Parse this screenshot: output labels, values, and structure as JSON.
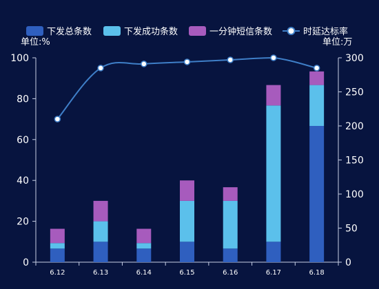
{
  "colors": {
    "background": "#07143f",
    "axis": "#c8d0e6",
    "text": "#ffffff",
    "series": [
      "#2f5fbf",
      "#5bc0eb",
      "#a75bbd"
    ],
    "line": "#3f7fc8",
    "marker_fill": "#ffffff",
    "marker_stroke": "#3f7fc8"
  },
  "chart_data": {
    "type": "bar",
    "stacked": true,
    "categories": [
      "6.12",
      "6.13",
      "6.14",
      "6.15",
      "6.16",
      "6.17",
      "6.18"
    ],
    "series": [
      {
        "name": "下发总条数",
        "axis": "right",
        "values": [
          20,
          30,
          20,
          30,
          20,
          30,
          200
        ]
      },
      {
        "name": "下发成功条数",
        "axis": "right",
        "values": [
          8,
          30,
          8,
          60,
          70,
          200,
          60
        ]
      },
      {
        "name": "一分钟短信条数",
        "axis": "right",
        "values": [
          21,
          30,
          21,
          30,
          20,
          30,
          20
        ]
      }
    ],
    "line_series": {
      "name": "时延达标率",
      "axis": "left",
      "type": "line",
      "smooth": true,
      "values": [
        70,
        95,
        97,
        98,
        99,
        100,
        95
      ]
    },
    "y_left": {
      "label": "单位:%",
      "ylim": [
        0,
        100
      ],
      "ticks": [
        0,
        20,
        40,
        60,
        80,
        100
      ]
    },
    "y_right": {
      "label": "单位:万",
      "ylim": [
        0,
        300
      ],
      "ticks": [
        0,
        50,
        100,
        150,
        200,
        250,
        300
      ]
    },
    "grid": false,
    "legend": "top"
  }
}
